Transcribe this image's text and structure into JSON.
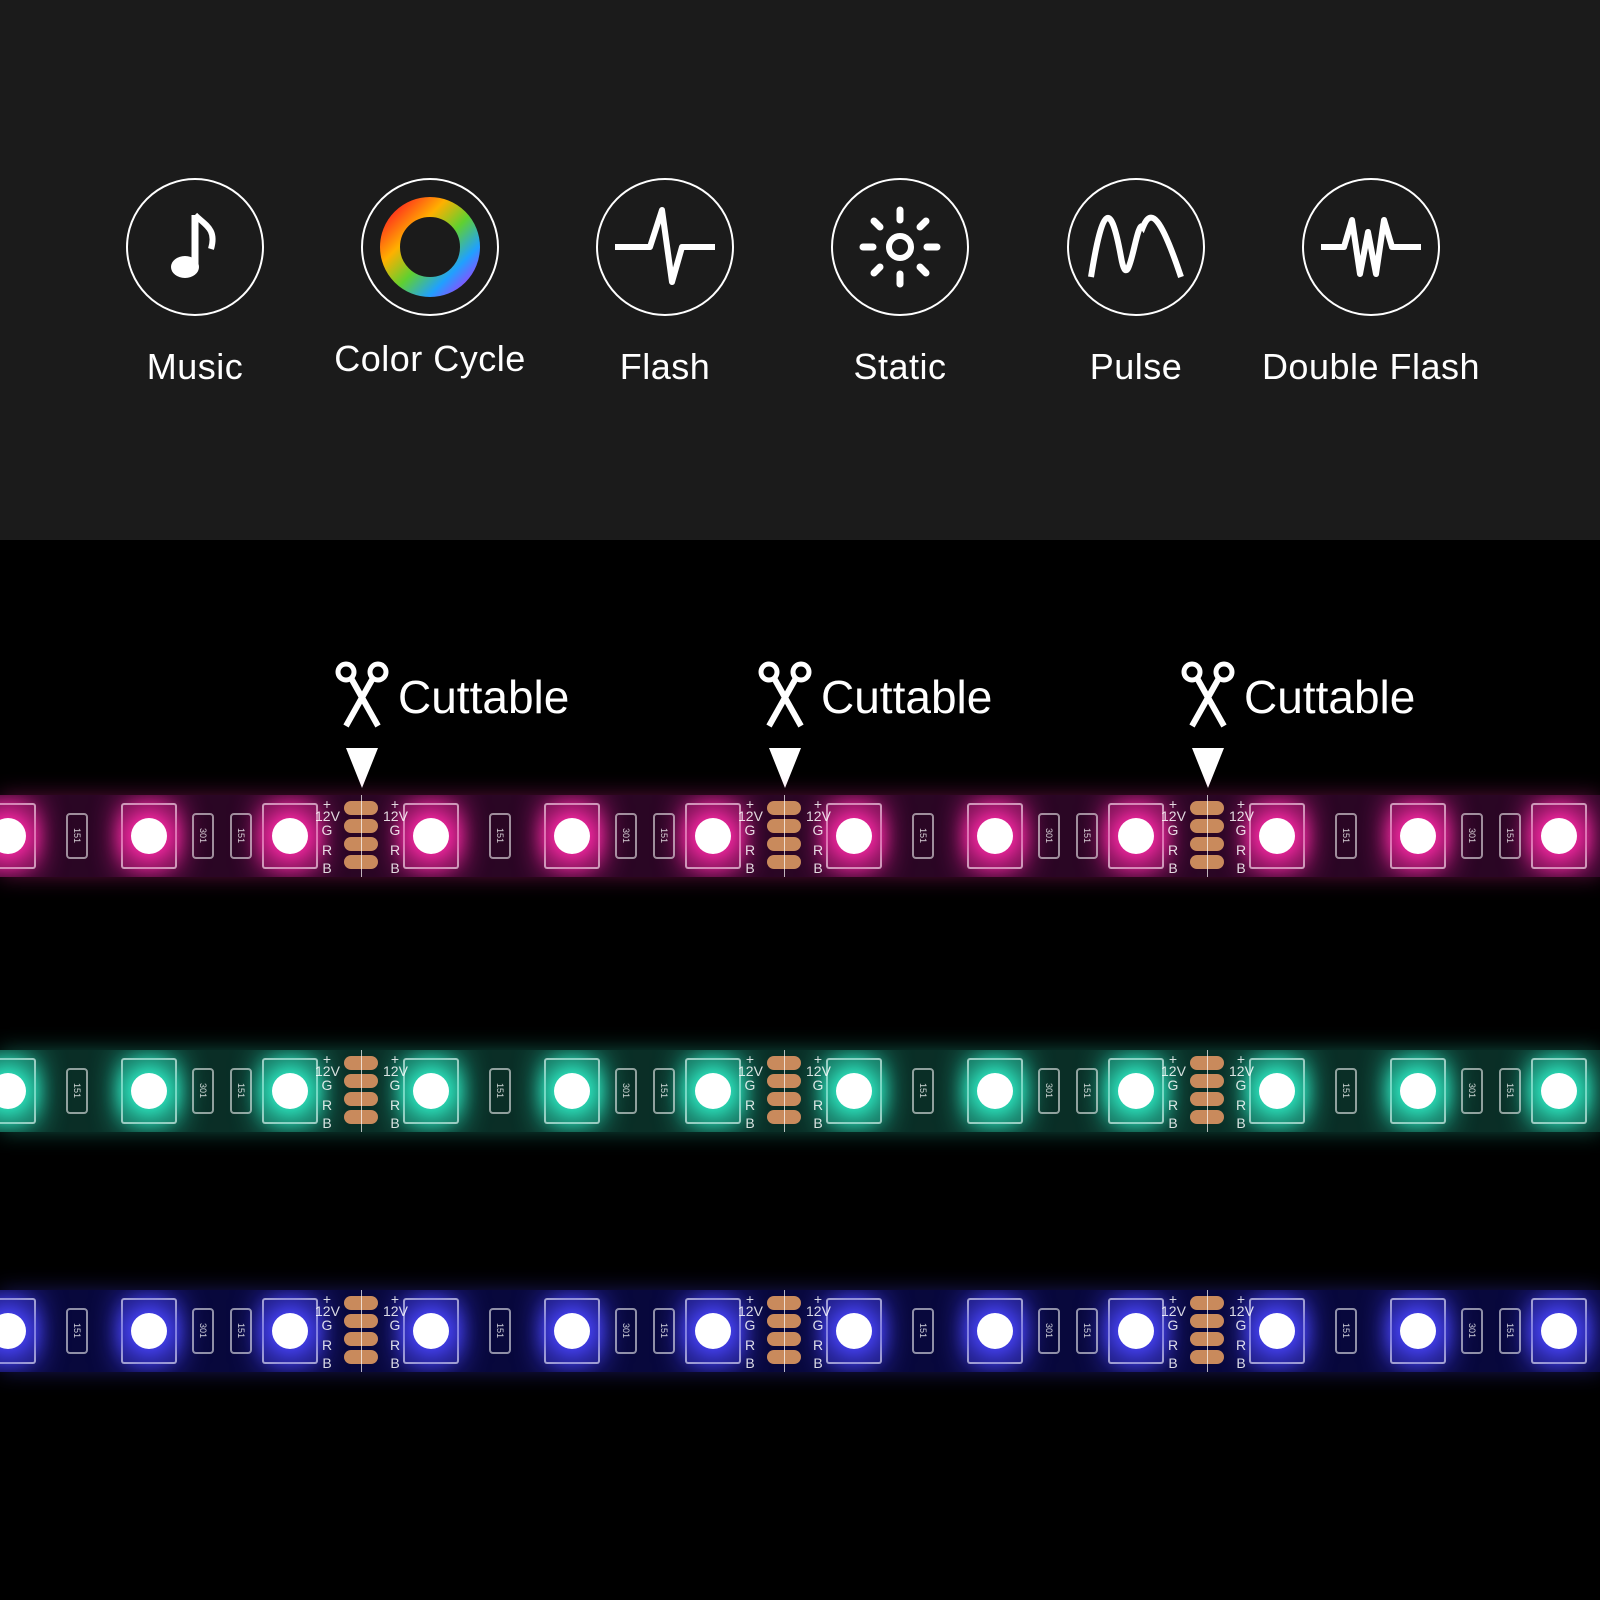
{
  "modes": [
    {
      "label": "Music",
      "icon": "music-note-icon"
    },
    {
      "label": "Color Cycle",
      "icon": "color-wheel-icon"
    },
    {
      "label": "Flash",
      "icon": "flash-pulse-icon"
    },
    {
      "label": "Static",
      "icon": "sun-icon"
    },
    {
      "label": "Pulse",
      "icon": "wave-icon"
    },
    {
      "label": "Double Flash",
      "icon": "double-pulse-icon"
    }
  ],
  "cut_label": "Cuttable",
  "cut_labels": [
    "Cuttable",
    "Cuttable",
    "Cuttable"
  ],
  "strip_markings": {
    "plus": "+",
    "voltage": "12V",
    "g": "G",
    "r": "R",
    "b": "B",
    "resistor_a": "151",
    "resistor_b": "301"
  },
  "strips": [
    {
      "name": "pink",
      "base": "#2a0624",
      "glow": "#ff2aa8"
    },
    {
      "name": "teal",
      "base": "#0a2e26",
      "glow": "#2ff0c8"
    },
    {
      "name": "blue",
      "base": "#08083c",
      "glow": "#4a46ff"
    }
  ]
}
